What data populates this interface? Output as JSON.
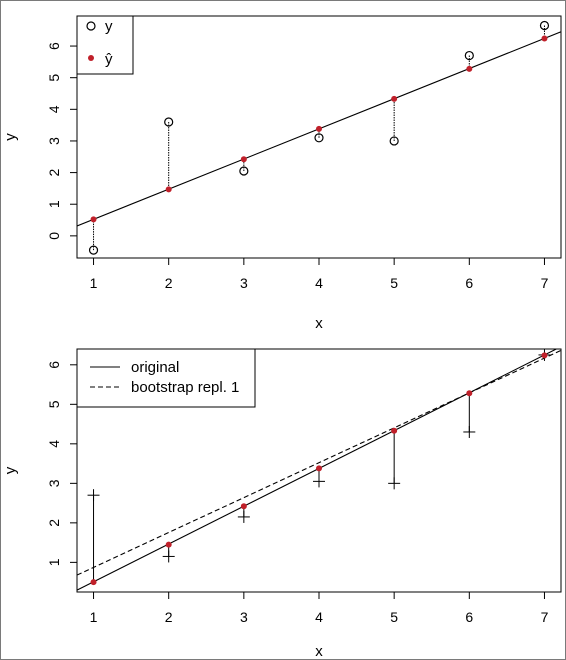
{
  "colors": {
    "axis": "#000000",
    "fitted_point": "#c0202a",
    "observed_point": "#000000"
  },
  "chart_data": [
    {
      "type": "scatter",
      "title": "",
      "xlabel": "x",
      "ylabel": "y",
      "xlim": [
        0.78,
        7.22
      ],
      "ylim": [
        -0.7,
        6.95
      ],
      "xticks": [
        1,
        2,
        3,
        4,
        5,
        6,
        7
      ],
      "yticks": [
        0,
        1,
        2,
        3,
        4,
        5,
        6
      ],
      "grid": false,
      "legend_position": "top-left",
      "x": [
        1,
        2,
        3,
        4,
        5,
        6,
        7
      ],
      "series": [
        {
          "name": "y",
          "marker": "open-circle",
          "values": [
            -0.45,
            3.6,
            2.05,
            3.1,
            3.0,
            5.7,
            6.65
          ]
        },
        {
          "name": "ŷ",
          "marker": "filled-circle",
          "values": [
            0.52,
            1.47,
            2.42,
            3.38,
            4.33,
            5.28,
            6.24
          ]
        }
      ],
      "regression_line": {
        "slope": 0.953,
        "intercept": -0.43
      },
      "residual_segments": "vertical dotted lines joining y and ŷ at each x",
      "legend": [
        {
          "label": "y",
          "marker": "open-circle"
        },
        {
          "label": "ŷ",
          "marker": "filled-circle"
        }
      ]
    },
    {
      "type": "scatter",
      "title": "",
      "xlabel": "x",
      "ylabel": "y",
      "xlim": [
        0.78,
        7.22
      ],
      "ylim": [
        0.25,
        6.4
      ],
      "xticks": [
        1,
        2,
        3,
        4,
        5,
        6,
        7
      ],
      "yticks": [
        1,
        2,
        3,
        4,
        5,
        6
      ],
      "grid": false,
      "legend_position": "top-left",
      "x": [
        1,
        2,
        3,
        4,
        5,
        6,
        7
      ],
      "series": [
        {
          "name": "",
          "marker": "plus",
          "values": [
            2.7,
            1.15,
            2.15,
            3.05,
            3.0,
            4.3,
            6.25
          ]
        },
        {
          "name": "",
          "marker": "filled-circle",
          "values": [
            0.5,
            1.45,
            2.42,
            3.38,
            4.33,
            5.28,
            6.24
          ]
        }
      ],
      "lines": [
        {
          "name": "original",
          "style": "solid",
          "slope": 0.957,
          "intercept": -0.45
        },
        {
          "name": "bootstrap repl. 1",
          "style": "dashed",
          "slope": 0.883,
          "intercept": -0.01
        }
      ],
      "legend": [
        {
          "label": "original",
          "style": "solid"
        },
        {
          "label": "bootstrap repl. 1",
          "style": "dashed"
        }
      ]
    }
  ]
}
